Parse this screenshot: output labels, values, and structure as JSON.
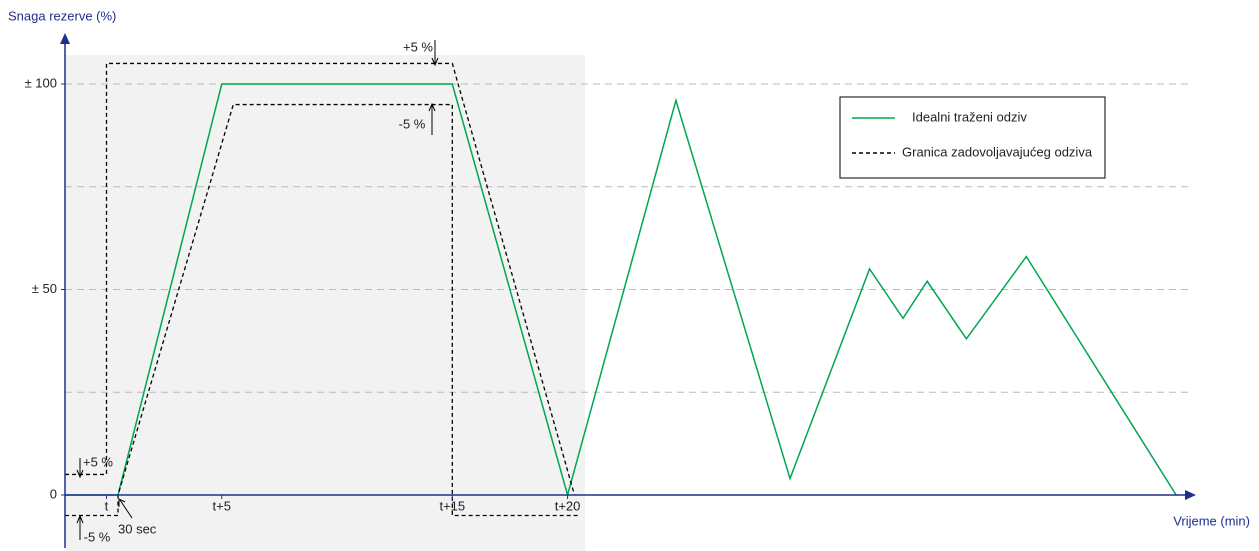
{
  "chart_data": {
    "type": "line",
    "y_label": "Snaga rezerve (%)",
    "x_label": "Vrijeme (min)",
    "xlim": [
      -1.8,
      47
    ],
    "ylim": [
      -13,
      111
    ],
    "xticks": [
      {
        "value": 0,
        "label": "t"
      },
      {
        "value": 5,
        "label": "t+5"
      },
      {
        "value": 15,
        "label": "t+15"
      },
      {
        "value": 20,
        "label": "t+20"
      }
    ],
    "yticks": [
      0,
      {
        "value": 50,
        "label": "± 50"
      },
      {
        "value": 100,
        "label": "± 100"
      }
    ],
    "ygrid": [
      25,
      50,
      75,
      100
    ],
    "series": [
      {
        "name": "Idealni traženi odziv",
        "color": "#00a650",
        "dash": false,
        "x": [
          -1.8,
          0.5,
          5,
          15,
          20,
          24.7,
          29.65,
          33.1,
          34.55,
          35.6,
          37.3,
          39.9,
          46.4
        ],
        "values": [
          0,
          0,
          100,
          100,
          0,
          96,
          4,
          55,
          43,
          52,
          38,
          58,
          0
        ]
      },
      {
        "name": "Granica zadovoljavajućeg odziva",
        "color": "#000000",
        "dash": true,
        "x": [
          -1.8,
          0,
          0,
          15,
          20.3,
          null,
          -1.8,
          0.5,
          0.5,
          5.5,
          15,
          15,
          20.5
        ],
        "values": [
          5,
          5,
          105,
          105,
          0,
          null,
          -5,
          -5,
          0,
          95,
          95,
          -5,
          -5
        ]
      }
    ],
    "annotations": [
      "+5 %",
      "-5 %",
      "+5 %",
      "-5 %",
      "30 sec"
    ]
  }
}
